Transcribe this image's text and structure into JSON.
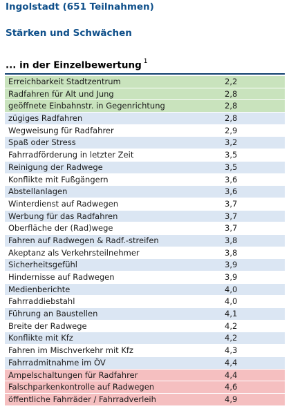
{
  "title": "Ingolstadt (651 Teilnahmen)",
  "subtitle": "Stärken und Schwächen",
  "section": {
    "label": "... in der Einzelbewertung",
    "footnote": "1"
  },
  "colors": {
    "strength": "#c9e3bd",
    "neutral": "#dbe6f3",
    "alt": "#ffffff",
    "weakness": "#f5bfc0"
  },
  "rows": [
    {
      "label": "Erreichbarkeit Stadtzentrum",
      "value": "2,2",
      "type": "strength"
    },
    {
      "label": "Radfahren für Alt und Jung",
      "value": "2,8",
      "type": "strength"
    },
    {
      "label": "geöffnete Einbahnstr. in Gegenrichtung",
      "value": "2,8",
      "type": "strength"
    },
    {
      "label": "zügiges Radfahren",
      "value": "2,8",
      "type": "neutral"
    },
    {
      "label": "Wegweisung für Radfahrer",
      "value": "2,9",
      "type": "alt"
    },
    {
      "label": "Spaß oder Stress",
      "value": "3,2",
      "type": "neutral"
    },
    {
      "label": "Fahrradförderung in letzter Zeit",
      "value": "3,5",
      "type": "alt"
    },
    {
      "label": "Reinigung der Radwege",
      "value": "3,5",
      "type": "neutral"
    },
    {
      "label": "Konflikte mit Fußgängern",
      "value": "3,6",
      "type": "alt"
    },
    {
      "label": "Abstellanlagen",
      "value": "3,6",
      "type": "neutral"
    },
    {
      "label": "Winterdienst auf Radwegen",
      "value": "3,7",
      "type": "alt"
    },
    {
      "label": "Werbung für das Radfahren",
      "value": "3,7",
      "type": "neutral"
    },
    {
      "label": "Oberfläche der (Rad)wege",
      "value": "3,7",
      "type": "alt"
    },
    {
      "label": "Fahren auf Radwegen & Radf.-streifen",
      "value": "3,8",
      "type": "neutral"
    },
    {
      "label": "Akeptanz als Verkehrsteilnehmer",
      "value": "3,8",
      "type": "alt"
    },
    {
      "label": "Sicherheitsgefühl",
      "value": "3,9",
      "type": "neutral"
    },
    {
      "label": "Hindernisse auf Radwegen",
      "value": "3,9",
      "type": "alt"
    },
    {
      "label": "Medienberichte",
      "value": "4,0",
      "type": "neutral"
    },
    {
      "label": "Fahrraddiebstahl",
      "value": "4,0",
      "type": "alt"
    },
    {
      "label": "Führung an Baustellen",
      "value": "4,1",
      "type": "neutral"
    },
    {
      "label": "Breite der Radwege",
      "value": "4,2",
      "type": "alt"
    },
    {
      "label": "Konflikte mit Kfz",
      "value": "4,2",
      "type": "neutral"
    },
    {
      "label": "Fahren im Mischverkehr mit Kfz",
      "value": "4,3",
      "type": "alt"
    },
    {
      "label": "Fahrradmitnahme im ÖV",
      "value": "4,4",
      "type": "neutral"
    },
    {
      "label": "Ampelschaltungen für Radfahrer",
      "value": "4,4",
      "type": "weakness"
    },
    {
      "label": "Falschparkenkontrolle auf Radwegen",
      "value": "4,6",
      "type": "weakness"
    },
    {
      "label": "öffentliche Fahrräder / Fahrradverleih",
      "value": "4,9",
      "type": "weakness"
    }
  ]
}
